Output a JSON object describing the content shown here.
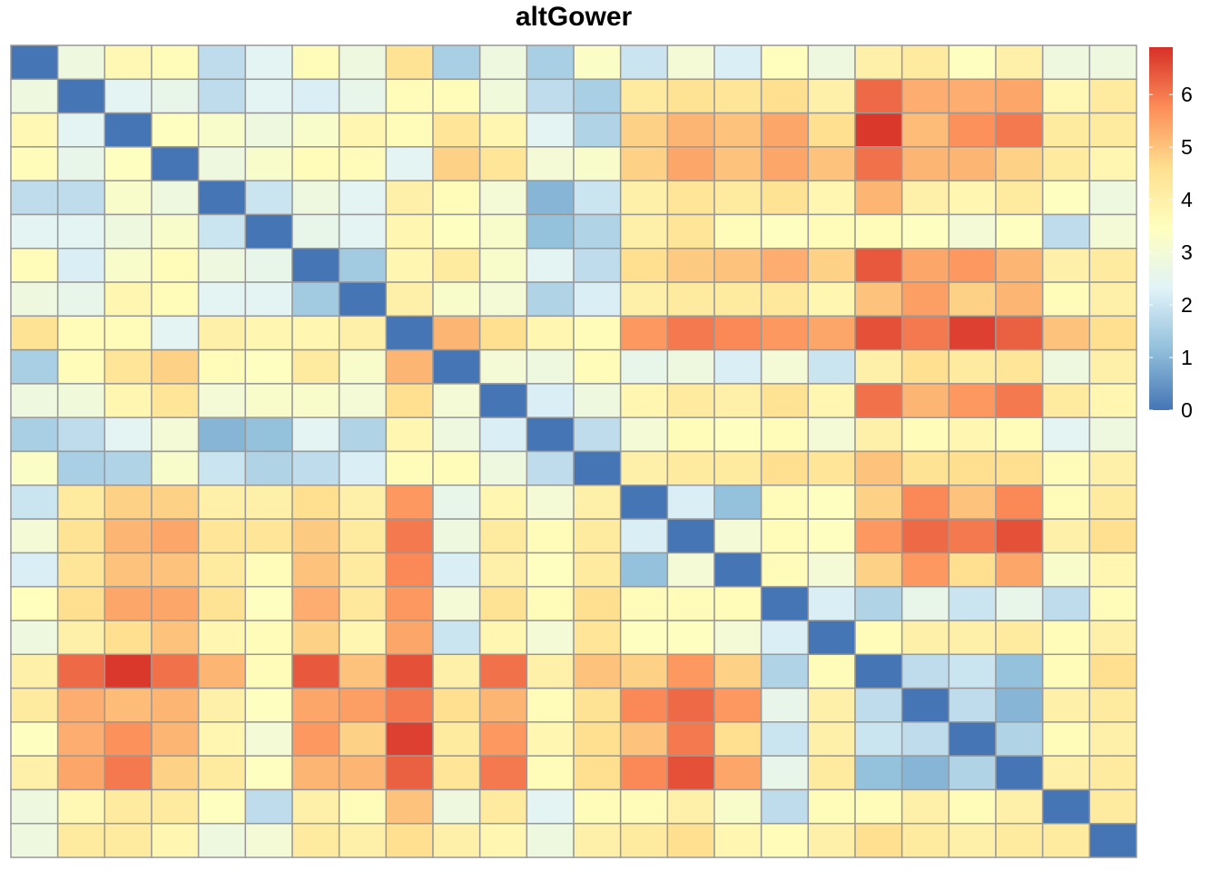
{
  "chart_data": {
    "type": "heatmap",
    "title": "altGower",
    "n_rows": 24,
    "n_cols": 24,
    "value_range": [
      0,
      6.9
    ],
    "colorbar": {
      "ticks": [
        0,
        1,
        2,
        3,
        4,
        5,
        6
      ],
      "tick_labels": [
        "0",
        "1",
        "2",
        "3",
        "4",
        "5",
        "6"
      ],
      "colors": [
        "#4575B4",
        "#91BFDB",
        "#E0F3F8",
        "#FFFFBF",
        "#FEE090",
        "#FC8D59",
        "#D73027"
      ]
    },
    "cell_border_color": "#999999",
    "values": [
      [
        0.0,
        2.8,
        3.7,
        3.6,
        1.8,
        2.4,
        3.6,
        2.8,
        4.5,
        1.5,
        2.8,
        1.5,
        3.3,
        2.0,
        3.0,
        2.2,
        3.5,
        2.8,
        4.0,
        4.2,
        3.4,
        4.0,
        2.8,
        2.8
      ],
      [
        2.8,
        0.0,
        2.4,
        2.6,
        1.8,
        2.4,
        2.2,
        2.6,
        3.6,
        3.6,
        2.9,
        1.8,
        1.5,
        4.2,
        4.5,
        4.4,
        4.6,
        4.0,
        6.2,
        5.3,
        5.3,
        5.4,
        3.7,
        4.2
      ],
      [
        3.7,
        2.4,
        0.0,
        3.4,
        3.2,
        2.8,
        3.2,
        3.8,
        3.6,
        4.4,
        3.8,
        2.4,
        1.6,
        4.8,
        5.2,
        5.0,
        5.4,
        4.6,
        6.8,
        5.1,
        5.7,
        6.0,
        4.2,
        4.2
      ],
      [
        3.6,
        2.6,
        3.4,
        0.0,
        2.8,
        3.2,
        3.6,
        3.6,
        2.4,
        4.8,
        4.4,
        3.0,
        3.2,
        4.8,
        5.4,
        5.0,
        5.4,
        5.0,
        6.1,
        5.2,
        5.2,
        4.8,
        4.2,
        3.8
      ],
      [
        1.8,
        1.8,
        3.2,
        2.8,
        0.0,
        2.0,
        2.8,
        2.4,
        4.0,
        3.6,
        3.0,
        1.0,
        2.0,
        4.0,
        4.4,
        4.2,
        4.5,
        3.8,
        5.2,
        4.0,
        3.8,
        4.2,
        3.4,
        2.8
      ],
      [
        2.4,
        2.4,
        2.8,
        3.2,
        2.0,
        0.0,
        2.6,
        2.4,
        3.8,
        3.4,
        3.2,
        1.2,
        1.6,
        4.0,
        4.4,
        3.6,
        3.4,
        3.6,
        3.6,
        3.4,
        3.0,
        3.4,
        1.8,
        3.0
      ],
      [
        3.6,
        2.2,
        3.2,
        3.6,
        2.8,
        2.6,
        0.0,
        1.4,
        3.8,
        4.2,
        3.2,
        2.4,
        1.8,
        4.6,
        4.9,
        5.0,
        5.3,
        4.8,
        6.4,
        5.4,
        5.6,
        5.2,
        4.0,
        4.2
      ],
      [
        2.8,
        2.6,
        3.8,
        3.6,
        2.4,
        2.4,
        1.4,
        0.0,
        4.0,
        3.2,
        3.0,
        1.6,
        2.2,
        4.0,
        4.2,
        4.2,
        4.3,
        3.8,
        5.0,
        5.5,
        4.8,
        5.2,
        3.6,
        4.0
      ],
      [
        4.5,
        3.6,
        3.6,
        2.4,
        4.0,
        3.8,
        3.8,
        4.0,
        0.0,
        5.2,
        4.6,
        3.8,
        3.6,
        5.6,
        6.0,
        5.8,
        5.6,
        5.4,
        6.5,
        6.0,
        6.7,
        6.3,
        5.0,
        4.6
      ],
      [
        1.5,
        3.6,
        4.4,
        4.8,
        3.6,
        3.4,
        4.2,
        3.2,
        5.2,
        0.0,
        3.0,
        2.8,
        3.6,
        2.6,
        2.8,
        2.2,
        3.0,
        2.0,
        4.0,
        4.6,
        4.2,
        4.4,
        2.8,
        4.0
      ],
      [
        2.8,
        2.9,
        3.8,
        4.4,
        3.0,
        3.2,
        3.2,
        3.0,
        4.6,
        3.0,
        0.0,
        2.2,
        2.8,
        3.8,
        4.2,
        4.0,
        4.5,
        3.8,
        6.1,
        5.2,
        5.6,
        6.0,
        4.2,
        3.8
      ],
      [
        1.5,
        1.8,
        2.4,
        3.0,
        1.0,
        1.2,
        2.4,
        1.6,
        3.8,
        2.8,
        2.2,
        0.0,
        1.8,
        3.0,
        3.6,
        3.4,
        3.6,
        3.0,
        4.0,
        3.6,
        3.8,
        3.6,
        2.4,
        2.8
      ],
      [
        3.3,
        1.5,
        1.6,
        3.2,
        2.0,
        1.6,
        1.8,
        2.2,
        3.6,
        3.6,
        2.8,
        1.8,
        0.0,
        4.0,
        4.2,
        4.2,
        4.6,
        4.4,
        5.0,
        4.5,
        4.6,
        4.6,
        3.6,
        4.0
      ],
      [
        2.0,
        4.2,
        4.8,
        4.8,
        4.0,
        4.0,
        4.6,
        4.0,
        5.6,
        2.6,
        3.8,
        3.0,
        4.0,
        0.0,
        2.2,
        1.2,
        3.6,
        3.4,
        4.8,
        5.8,
        5.0,
        5.8,
        3.6,
        4.2
      ],
      [
        3.0,
        4.5,
        5.2,
        5.4,
        4.4,
        4.4,
        4.9,
        4.2,
        6.0,
        2.8,
        4.2,
        3.6,
        4.2,
        2.2,
        0.0,
        3.0,
        3.6,
        3.4,
        5.6,
        6.2,
        6.0,
        6.5,
        4.0,
        4.6
      ],
      [
        2.2,
        4.4,
        5.0,
        5.0,
        4.2,
        3.6,
        5.0,
        4.2,
        5.8,
        2.2,
        4.0,
        3.4,
        4.2,
        1.2,
        3.0,
        0.0,
        3.6,
        3.0,
        4.8,
        5.6,
        4.6,
        5.4,
        3.2,
        3.8
      ],
      [
        3.5,
        4.6,
        5.4,
        5.4,
        4.5,
        3.4,
        5.3,
        4.3,
        5.6,
        3.0,
        4.5,
        3.6,
        4.6,
        3.6,
        3.6,
        3.6,
        0.0,
        2.2,
        1.6,
        2.6,
        2.0,
        2.6,
        1.8,
        3.6
      ],
      [
        2.8,
        4.0,
        4.6,
        5.0,
        3.8,
        3.6,
        4.8,
        3.8,
        5.4,
        2.0,
        3.8,
        3.0,
        4.4,
        3.4,
        3.4,
        3.0,
        2.2,
        0.0,
        3.6,
        4.0,
        4.0,
        4.2,
        3.6,
        4.0
      ],
      [
        4.0,
        6.2,
        6.8,
        6.1,
        5.2,
        3.6,
        6.4,
        5.0,
        6.5,
        4.0,
        6.1,
        4.0,
        5.0,
        4.8,
        5.6,
        4.8,
        1.6,
        3.6,
        0.0,
        1.8,
        2.0,
        1.2,
        3.6,
        4.6
      ],
      [
        4.2,
        5.3,
        5.1,
        5.2,
        4.0,
        3.4,
        5.4,
        5.5,
        6.0,
        4.6,
        5.2,
        3.6,
        4.5,
        5.8,
        6.2,
        5.6,
        2.6,
        4.0,
        1.8,
        0.0,
        1.8,
        1.0,
        4.0,
        4.2
      ],
      [
        3.4,
        5.3,
        5.7,
        5.2,
        3.8,
        3.0,
        5.6,
        4.8,
        6.7,
        4.2,
        5.6,
        3.8,
        4.6,
        5.0,
        6.0,
        4.6,
        2.0,
        4.0,
        2.0,
        1.8,
        0.0,
        1.6,
        3.6,
        4.0
      ],
      [
        4.0,
        5.4,
        6.0,
        4.8,
        4.2,
        3.4,
        5.2,
        5.2,
        6.3,
        4.4,
        6.0,
        3.6,
        4.6,
        5.8,
        6.5,
        5.4,
        2.6,
        4.2,
        1.2,
        1.0,
        1.6,
        0.0,
        4.0,
        4.2
      ],
      [
        2.8,
        3.7,
        4.2,
        4.2,
        3.4,
        1.8,
        4.0,
        3.6,
        5.0,
        2.8,
        4.2,
        2.4,
        3.6,
        3.6,
        4.0,
        3.2,
        1.8,
        3.6,
        3.6,
        4.0,
        3.6,
        4.0,
        0.0,
        4.2
      ],
      [
        2.8,
        4.2,
        4.2,
        3.8,
        2.8,
        3.0,
        4.2,
        4.0,
        4.6,
        4.0,
        3.8,
        2.8,
        4.0,
        4.2,
        4.6,
        3.8,
        3.6,
        4.0,
        4.6,
        4.2,
        4.0,
        4.2,
        4.2,
        0.0
      ]
    ]
  }
}
